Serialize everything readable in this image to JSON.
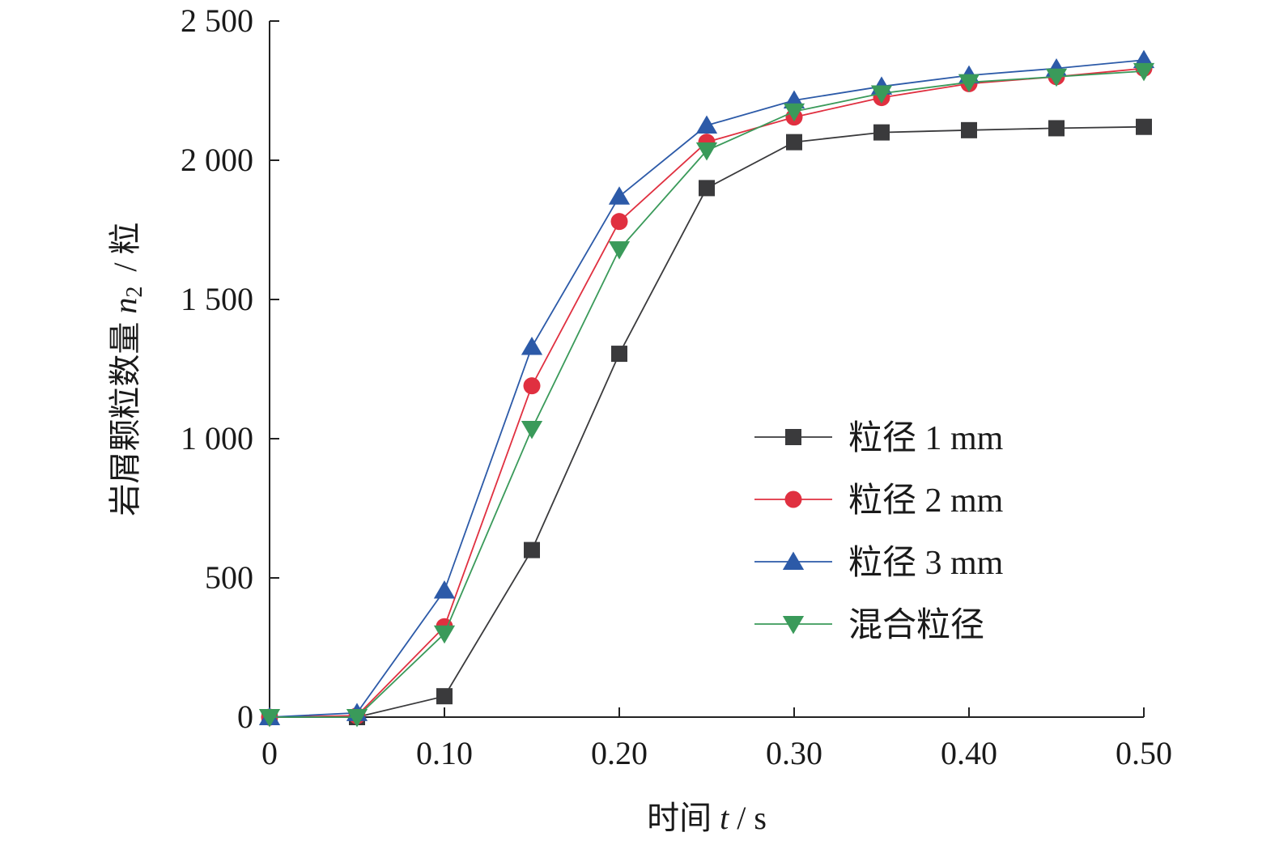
{
  "chart_data": {
    "type": "line",
    "xlabel": {
      "prefix": "时间 ",
      "var": "t",
      "suffix": " / s"
    },
    "ylabel": {
      "prefix": "岩屑颗粒数量 ",
      "var": "n",
      "sub": "2",
      "suffix": " / 粒"
    },
    "xlim": [
      0,
      0.5
    ],
    "ylim": [
      0,
      2500
    ],
    "x": [
      0,
      0.05,
      0.1,
      0.15,
      0.2,
      0.25,
      0.3,
      0.35,
      0.4,
      0.45,
      0.5
    ],
    "x_tick_values": [
      0,
      0.1,
      0.2,
      0.3,
      0.4,
      0.5
    ],
    "x_tick_labels": [
      "0",
      "0.10",
      "0.20",
      "0.30",
      "0.40",
      "0.50"
    ],
    "y_tick_values": [
      0,
      500,
      1000,
      1500,
      2000,
      2500
    ],
    "y_tick_labels": [
      "0",
      "500",
      "1 000",
      "1 500",
      "2 000",
      "2 500"
    ],
    "grid": false,
    "legend_position": "right",
    "series": [
      {
        "name": "粒径 1 mm",
        "marker": "square",
        "color": "#3a3a3c",
        "values": [
          0,
          0,
          75,
          600,
          1305,
          1900,
          2065,
          2100,
          2108,
          2115,
          2120
        ]
      },
      {
        "name": "粒径 2 mm",
        "marker": "circle",
        "color": "#e03040",
        "values": [
          0,
          5,
          325,
          1190,
          1780,
          2065,
          2155,
          2225,
          2275,
          2300,
          2330
        ]
      },
      {
        "name": "粒径 3 mm",
        "marker": "triangle-up",
        "color": "#2c5aa8",
        "values": [
          0,
          15,
          455,
          1330,
          1870,
          2125,
          2215,
          2265,
          2305,
          2330,
          2360
        ]
      },
      {
        "name": "混合粒径",
        "marker": "triangle-down",
        "color": "#3a9a5a",
        "values": [
          0,
          0,
          300,
          1035,
          1680,
          2035,
          2175,
          2240,
          2280,
          2300,
          2320
        ]
      }
    ]
  }
}
